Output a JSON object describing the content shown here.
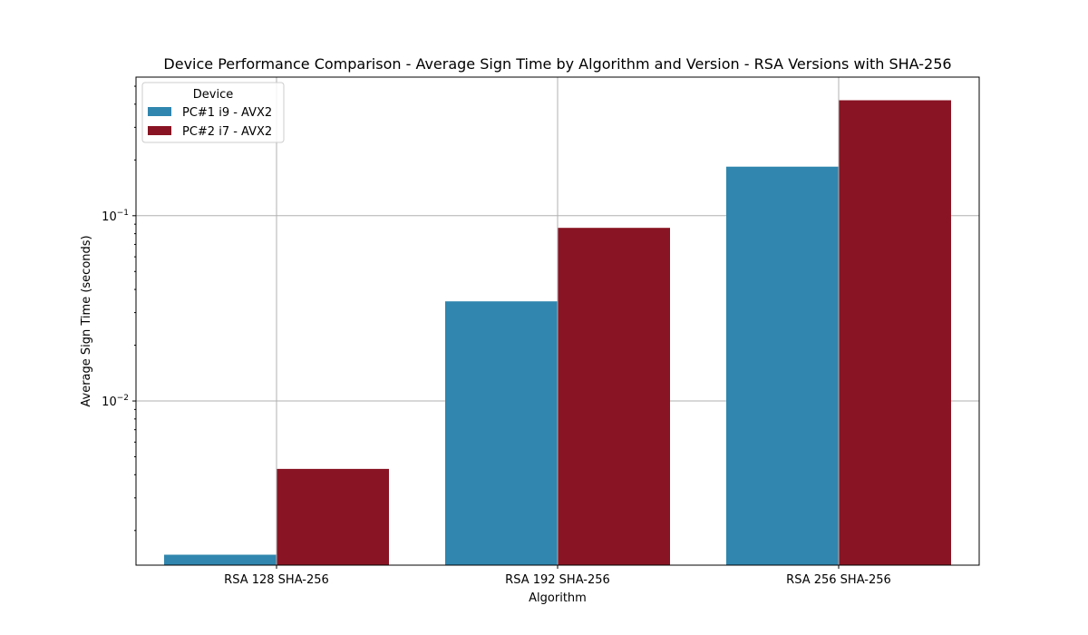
{
  "chart_data": {
    "type": "bar",
    "title": "Device Performance Comparison - Average Sign Time by Algorithm and Version - RSA Versions with SHA-256",
    "xlabel": "Algorithm",
    "ylabel": "Average Sign Time (seconds)",
    "yscale": "log",
    "ylim": [
      0.0013,
      0.56
    ],
    "yticks": [
      {
        "value": 0.01,
        "base": "10",
        "exp": "−2"
      },
      {
        "value": 0.1,
        "base": "10",
        "exp": "−1"
      }
    ],
    "categories": [
      "RSA 128 SHA-256",
      "RSA 192 SHA-256",
      "RSA 256 SHA-256"
    ],
    "series": [
      {
        "name": "PC#1 i9 - AVX2",
        "color": "#3086ae",
        "values": [
          0.00148,
          0.0345,
          0.184
        ]
      },
      {
        "name": "PC#2 i7 - AVX2",
        "color": "#891423",
        "values": [
          0.0043,
          0.086,
          0.42
        ]
      }
    ],
    "legend": {
      "title": "Device",
      "position": "top-left"
    },
    "grid": true
  }
}
